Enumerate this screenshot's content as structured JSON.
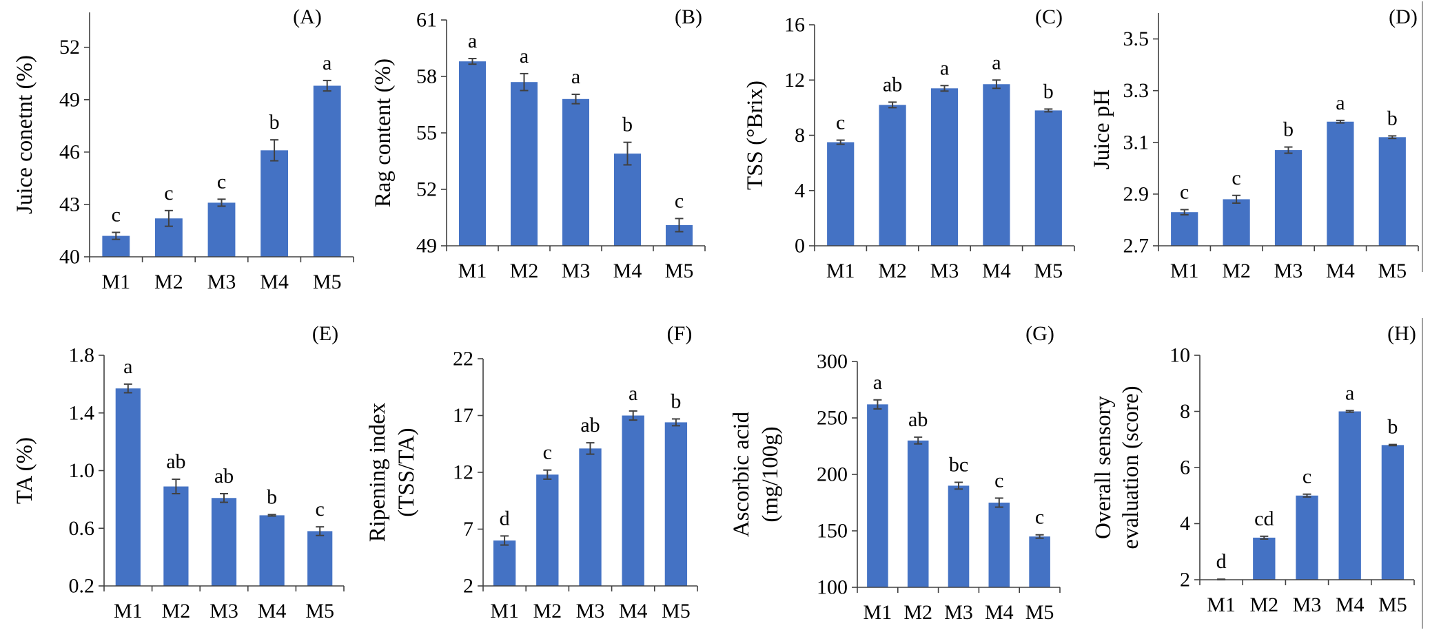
{
  "colors": {
    "bar": "#4472C4",
    "error_bar": "#404040",
    "axis": "#404040",
    "panel_border": "#808080"
  },
  "grid": false,
  "legend": "none",
  "chart_data": [
    {
      "panel_label": "(A)",
      "type": "bar",
      "ylabel": [
        "Juice conetnt (%)"
      ],
      "categories": [
        "M1",
        "M2",
        "M3",
        "M4",
        "M5"
      ],
      "values": [
        41.2,
        42.2,
        43.1,
        46.1,
        49.8
      ],
      "error": [
        0.2,
        0.45,
        0.2,
        0.6,
        0.3
      ],
      "letters": [
        "c",
        "c",
        "c",
        "b",
        "a"
      ],
      "ylim": [
        40,
        54
      ],
      "yticks": [
        40,
        43,
        46,
        49,
        52
      ],
      "ytick_labels": [
        "40",
        "43",
        "46",
        "49",
        "52"
      ]
    },
    {
      "panel_label": "(B)",
      "type": "bar",
      "ylabel": [
        "Rag content (%)"
      ],
      "categories": [
        "M1",
        "M2",
        "M3",
        "M4",
        "M5"
      ],
      "values": [
        58.8,
        57.7,
        56.8,
        53.9,
        50.1
      ],
      "error": [
        0.15,
        0.45,
        0.25,
        0.6,
        0.35
      ],
      "letters": [
        "a",
        "a",
        "a",
        "b",
        "c"
      ],
      "ylim": [
        49,
        61
      ],
      "yticks": [
        49,
        52,
        55,
        58,
        61
      ],
      "ytick_labels": [
        "49",
        "52",
        "55",
        "58",
        "61"
      ]
    },
    {
      "panel_label": "(C)",
      "type": "bar",
      "ylabel": [
        "TSS (°Brix)"
      ],
      "categories": [
        "M1",
        "M2",
        "M3",
        "M4",
        "M5"
      ],
      "values": [
        7.5,
        10.2,
        11.4,
        11.7,
        9.8
      ],
      "error": [
        0.15,
        0.2,
        0.2,
        0.3,
        0.1
      ],
      "letters": [
        "c",
        "ab",
        "a",
        "a",
        "b"
      ],
      "ylim": [
        0,
        16
      ],
      "yticks": [
        0,
        4,
        8,
        12,
        16
      ],
      "ytick_labels": [
        "0",
        "4",
        "8",
        "12",
        "16"
      ]
    },
    {
      "panel_label": "(D)",
      "type": "bar",
      "ylabel": [
        "Juice pH"
      ],
      "categories": [
        "M1",
        "M2",
        "M3",
        "M4",
        "M5"
      ],
      "values": [
        2.83,
        2.88,
        3.07,
        3.18,
        3.12
      ],
      "error": [
        0.01,
        0.015,
        0.012,
        0.005,
        0.005
      ],
      "letters": [
        "c",
        "c",
        "b",
        "a",
        "b"
      ],
      "ylim": [
        2.7,
        3.6
      ],
      "yticks": [
        2.7,
        2.9,
        3.1,
        3.3,
        3.5
      ],
      "ytick_labels": [
        "2.7",
        "2.9",
        "3.1",
        "3.3",
        "3.5"
      ]
    },
    {
      "panel_label": "(E)",
      "type": "bar",
      "ylabel": [
        "TA (%)"
      ],
      "categories": [
        "M1",
        "M2",
        "M3",
        "M4",
        "M5"
      ],
      "values": [
        1.57,
        0.89,
        0.81,
        0.69,
        0.58
      ],
      "error": [
        0.03,
        0.05,
        0.03,
        0.005,
        0.03
      ],
      "letters": [
        "a",
        "ab",
        "ab",
        "b",
        "c"
      ],
      "ylim": [
        0.2,
        1.8
      ],
      "yticks": [
        0.2,
        0.6,
        1.0,
        1.4,
        1.8
      ],
      "ytick_labels": [
        "0.2",
        "0.6",
        "1.0",
        "1.4",
        "1.8"
      ]
    },
    {
      "panel_label": "(F)",
      "type": "bar",
      "ylabel": [
        "Ripening index",
        "(TSS/TA)"
      ],
      "categories": [
        "M1",
        "M2",
        "M3",
        "M4",
        "M5"
      ],
      "values": [
        6.0,
        11.8,
        14.1,
        17.0,
        16.4
      ],
      "error": [
        0.4,
        0.4,
        0.5,
        0.4,
        0.3
      ],
      "letters": [
        "d",
        "c",
        "ab",
        "a",
        "b"
      ],
      "ylim": [
        2,
        22
      ],
      "yticks": [
        2,
        7,
        12,
        17,
        22
      ],
      "ytick_labels": [
        "2",
        "7",
        "12",
        "17",
        "22"
      ]
    },
    {
      "panel_label": "(G)",
      "type": "bar",
      "ylabel": [
        "Ascorbic acid",
        "(mg/100g)"
      ],
      "categories": [
        "M1",
        "M2",
        "M3",
        "M4",
        "M5"
      ],
      "values": [
        262,
        230,
        190,
        175,
        145
      ],
      "error": [
        4,
        3,
        3,
        4,
        1.5
      ],
      "letters": [
        "a",
        "ab",
        "bc",
        "c",
        "c"
      ],
      "ylim": [
        100,
        300
      ],
      "yticks": [
        100,
        150,
        200,
        250,
        300
      ],
      "ytick_labels": [
        "100",
        "150",
        "200",
        "250",
        "300"
      ]
    },
    {
      "panel_label": "(H)",
      "type": "bar",
      "ylabel": [
        "Overall sensory",
        "evaluation (score)"
      ],
      "categories": [
        "M1",
        "M2",
        "M3",
        "M4",
        "M5"
      ],
      "values": [
        2.0,
        3.5,
        5.0,
        8.0,
        6.8
      ],
      "error": [
        0.02,
        0.05,
        0.05,
        0.03,
        0.02
      ],
      "letters": [
        "d",
        "cd",
        "c",
        "a",
        "b"
      ],
      "ylim": [
        2,
        10
      ],
      "yticks": [
        2,
        4,
        6,
        8,
        10
      ],
      "ytick_labels": [
        "2",
        "4",
        "6",
        "8",
        "10"
      ]
    }
  ]
}
